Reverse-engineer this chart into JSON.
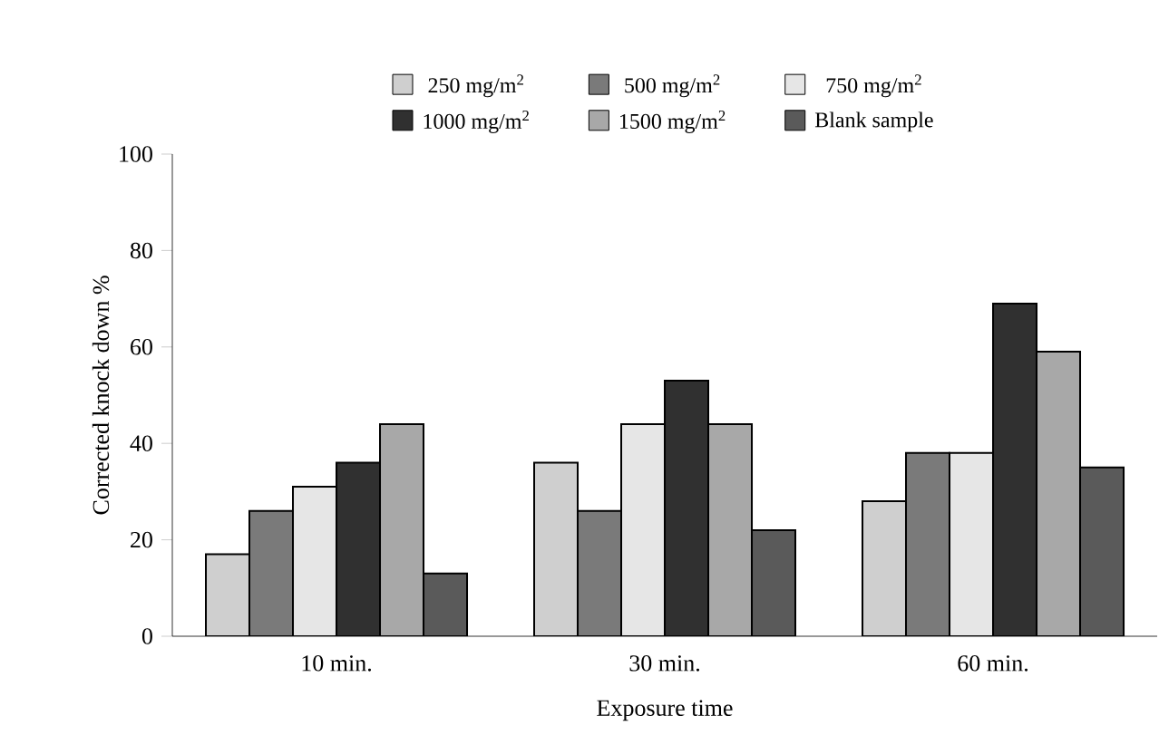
{
  "chart_data": {
    "type": "bar",
    "xlabel": "Exposure time",
    "ylabel": "Corrected knock down %",
    "categories": [
      "10 min.",
      "30 min.",
      "60 min."
    ],
    "series": [
      {
        "name": "250 mg/m$^{2}$",
        "color": "#cfcfcf",
        "values": [
          17,
          36,
          28
        ]
      },
      {
        "name": "500 mg/m$^{2}$",
        "color": "#7a7a7a",
        "values": [
          26,
          26,
          38
        ]
      },
      {
        "name": "750 mg/m$^{2}$",
        "color": "#e6e6e6",
        "values": [
          31,
          44,
          38
        ]
      },
      {
        "name": "1000 mg/m$^{2}$",
        "color": "#303030",
        "values": [
          36,
          53,
          69
        ]
      },
      {
        "name": "1500 mg/m$^{2}$",
        "color": "#a8a8a8",
        "values": [
          44,
          44,
          59
        ]
      },
      {
        "name": "Blank sample",
        "color": "#5a5a5a",
        "values": [
          13,
          22,
          35
        ]
      }
    ],
    "ylim": [
      0,
      100
    ],
    "yticks": [
      0,
      20,
      40,
      60,
      80,
      100
    ],
    "legend": "top"
  }
}
